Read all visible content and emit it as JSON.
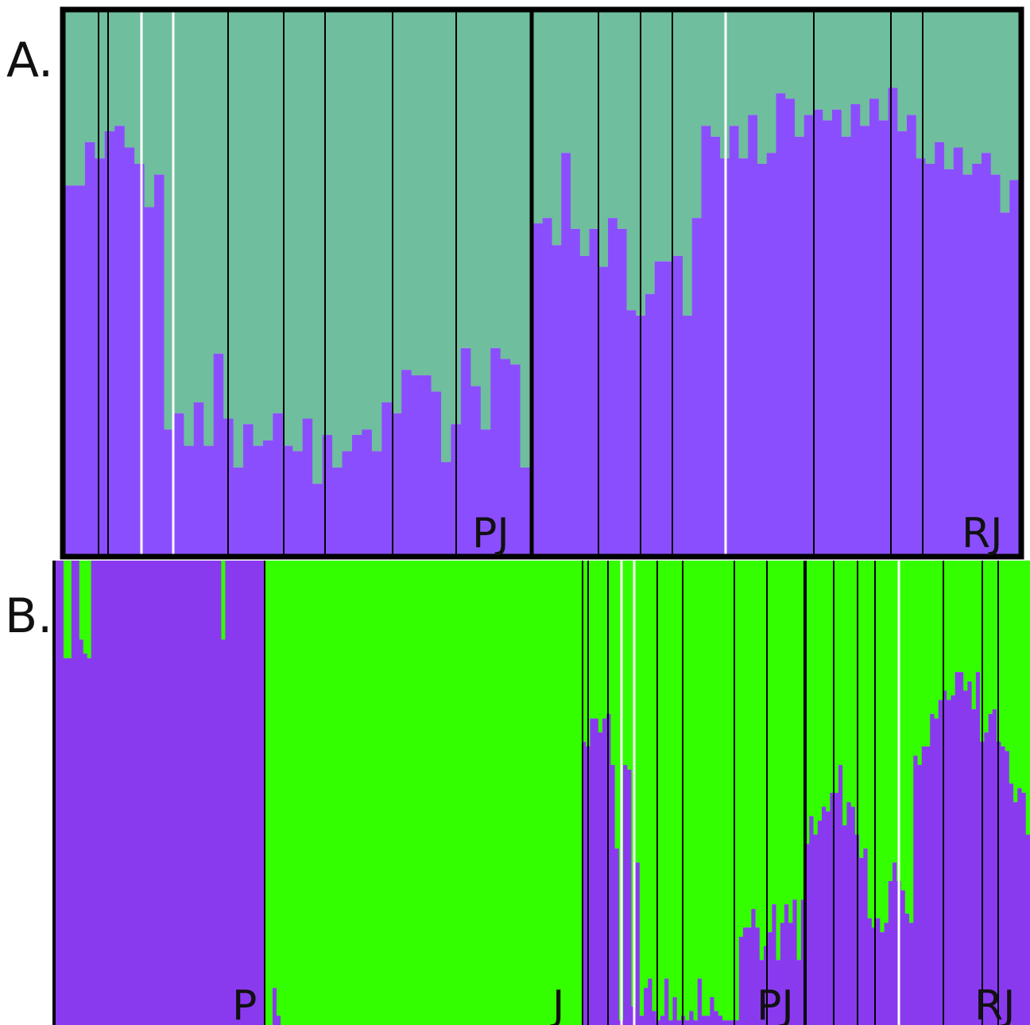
{
  "colors": {
    "purple": "#8B4EFF",
    "purple_b": "#8A3AEE",
    "teal": "#6FBE9E",
    "green": "#33FF00",
    "separator": "#000000",
    "gap": "#ffffff"
  },
  "chart_data": [
    {
      "type": "bar",
      "subtype": "stacked-admixture",
      "panel_label": "A.",
      "k": 2,
      "ylim": [
        0,
        1
      ],
      "groups": [
        {
          "label": "PJ",
          "values": [
            0.68,
            0.68,
            0.76,
            0.73,
            0.78,
            0.79,
            0.75,
            0.72,
            0.64,
            0.7,
            0.23,
            0.26,
            0.2,
            0.28,
            0.2,
            0.37,
            0.25,
            0.16,
            0.24,
            0.2,
            0.21,
            0.26,
            0.2,
            0.19,
            0.25,
            0.13,
            0.22,
            0.16,
            0.19,
            0.22,
            0.23,
            0.19,
            0.28,
            0.26,
            0.34,
            0.33,
            0.33,
            0.3,
            0.17,
            0.24,
            0.38,
            0.31,
            0.23,
            0.38,
            0.36,
            0.35,
            0.16
          ],
          "separators_after": [
            3,
            5,
            7,
            9,
            16,
            21,
            27,
            33,
            38
          ]
        },
        {
          "label": "RJ",
          "values": [
            0.61,
            0.62,
            0.57,
            0.74,
            0.6,
            0.55,
            0.6,
            0.53,
            0.62,
            0.6,
            0.45,
            0.44,
            0.48,
            0.54,
            0.54,
            0.55,
            0.44,
            0.62,
            0.79,
            0.77,
            0.73,
            0.79,
            0.73,
            0.81,
            0.72,
            0.74,
            0.85,
            0.84,
            0.77,
            0.81,
            0.82,
            0.8,
            0.82,
            0.77,
            0.83,
            0.79,
            0.84,
            0.8,
            0.86,
            0.78,
            0.81,
            0.73,
            0.72,
            0.76,
            0.71,
            0.75,
            0.7,
            0.72,
            0.74,
            0.7,
            0.63,
            0.69
          ]
        }
      ]
    },
    {
      "type": "bar",
      "subtype": "stacked-admixture",
      "panel_label": "B.",
      "k": 2,
      "ylim": [
        0,
        1
      ],
      "groups": [
        {
          "label": "P",
          "values": [
            1,
            1,
            0.79,
            0.79,
            1,
            1,
            0.83,
            0.8,
            0.79,
            1,
            1,
            1,
            1,
            1,
            1,
            1,
            1,
            1,
            1,
            1,
            1,
            1,
            1,
            1,
            1,
            1,
            1,
            1,
            1,
            1,
            1,
            1,
            1,
            1,
            1,
            1,
            1,
            1,
            1,
            1,
            1,
            1,
            0.83,
            1,
            1,
            1,
            1,
            1,
            1,
            1,
            1,
            1,
            1
          ]
        },
        {
          "label": "J",
          "values": [
            0,
            0,
            0.08,
            0.02,
            0,
            0,
            0,
            0,
            0,
            0,
            0,
            0,
            0,
            0,
            0,
            0,
            0,
            0,
            0,
            0,
            0,
            0,
            0,
            0,
            0,
            0,
            0,
            0,
            0,
            0,
            0,
            0,
            0,
            0,
            0,
            0,
            0,
            0,
            0,
            0,
            0,
            0,
            0,
            0,
            0,
            0,
            0,
            0,
            0,
            0,
            0,
            0,
            0,
            0,
            0,
            0,
            0,
            0,
            0,
            0,
            0,
            0,
            0,
            0,
            0,
            0,
            0,
            0,
            0,
            0,
            0,
            0,
            0,
            0,
            0,
            0,
            0,
            0,
            0,
            0
          ]
        },
        {
          "label": "PJ",
          "values": [
            0.61,
            0.6,
            0.66,
            0.66,
            0.63,
            0.66,
            0.67,
            0.56,
            0.38,
            0.01,
            0.56,
            0.55,
            0.04,
            0.35,
            0.02,
            0.08,
            0.1,
            0.03,
            0.01,
            0.02,
            0.1,
            0.01,
            0.06,
            0.01,
            0.02,
            0.01,
            0.03,
            0.01,
            0.1,
            0.02,
            0.02,
            0.06,
            0.03,
            0.02,
            0.01,
            0.01,
            0.01,
            0.01,
            0.19,
            0.21,
            0.21,
            0.25,
            0.21,
            0.14,
            0.17,
            0.2,
            0.26,
            0.14,
            0.22,
            0.26,
            0.22,
            0.27,
            0.14,
            0.27
          ]
        },
        {
          "label": "RJ",
          "values": [
            0.39,
            0.45,
            0.41,
            0.44,
            0.47,
            0.46,
            0.5,
            0.5,
            0.56,
            0.43,
            0.48,
            0.47,
            0.41,
            0.36,
            0.38,
            0.23,
            0.21,
            0.23,
            0.2,
            0.22,
            0.31,
            0.35,
            0.31,
            0.29,
            0.24,
            0.22,
            0.58,
            0.56,
            0.6,
            0.6,
            0.67,
            0.66,
            0.7,
            0.72,
            0.7,
            0.71,
            0.76,
            0.76,
            0.72,
            0.74,
            0.68,
            0.76,
            0.61,
            0.63,
            0.67,
            0.68,
            0.61,
            0.6,
            0.59,
            0.52,
            0.48,
            0.51,
            0.5,
            0.41
          ]
        }
      ]
    }
  ]
}
